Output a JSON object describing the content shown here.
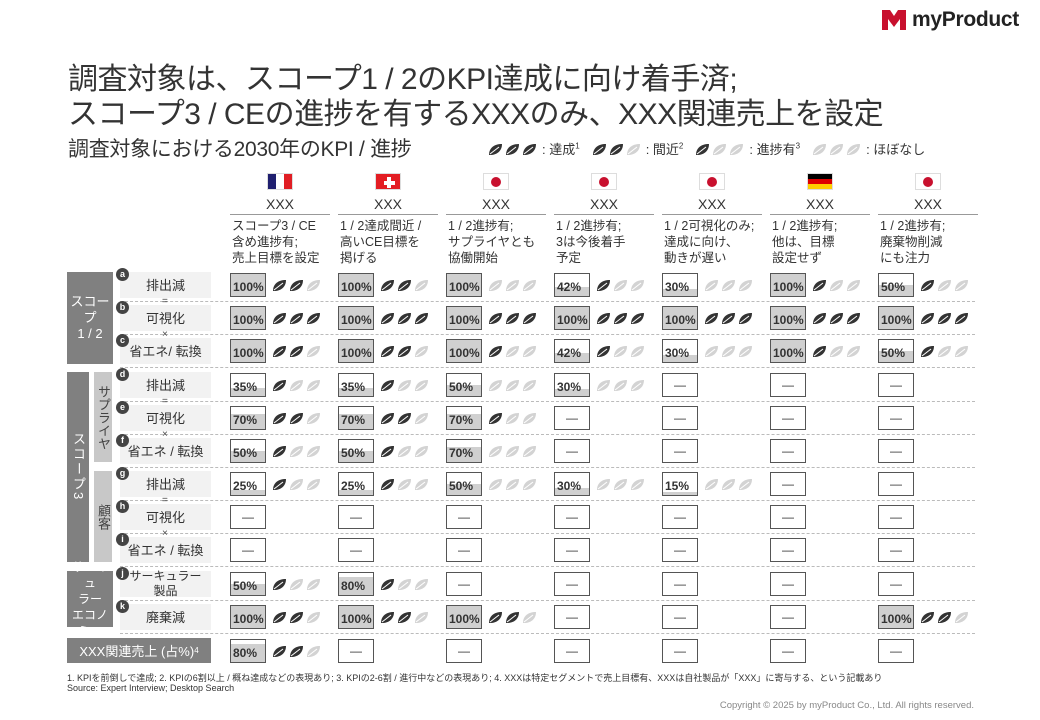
{
  "brand": {
    "name": "myProduct"
  },
  "title_lines": [
    "調査対象は、スコープ1 / 2のKPI達成に向け着手済;",
    "スコープ3 / CEの進捗を有するXXXのみ、XXX関連売上を設定"
  ],
  "subtitle": "調査対象における2030年のKPI / 進捗",
  "legend": [
    {
      "level": 3,
      "label": ": 達成",
      "sup": "1"
    },
    {
      "level": 2,
      "label": ": 間近",
      "sup": "2"
    },
    {
      "level": 1,
      "label": ": 進捗有",
      "sup": "3"
    },
    {
      "level": 0,
      "label": ": ほぼなし",
      "sup": ""
    }
  ],
  "colors": {
    "leaf_on": "#333333",
    "leaf_off": "#d3d3d3",
    "group_bg": "#808080",
    "fill": "#d0d0d0",
    "brand_red": "#c8102e"
  },
  "columns": [
    {
      "name": "XXX",
      "flag": "fr",
      "desc": [
        "スコープ3 / CE",
        "含め進捗有;",
        "売上目標を設定"
      ]
    },
    {
      "name": "XXX",
      "flag": "ch",
      "desc": [
        "1 / 2達成間近 /",
        "高いCE目標を",
        "掲げる"
      ]
    },
    {
      "name": "XXX",
      "flag": "jp",
      "desc": [
        "1 / 2進捗有;",
        "サプライヤとも",
        "協働開始"
      ]
    },
    {
      "name": "XXX",
      "flag": "jp",
      "desc": [
        "1 / 2進捗有;",
        "3は今後着手",
        "予定"
      ]
    },
    {
      "name": "XXX",
      "flag": "jp",
      "desc": [
        "1 / 2可視化のみ;",
        "達成に向け、",
        "動きが遅い"
      ]
    },
    {
      "name": "XXX",
      "flag": "de",
      "desc": [
        "1 / 2進捗有;",
        "他は、目標",
        "設定せず"
      ]
    },
    {
      "name": "XXX",
      "flag": "jp",
      "desc": [
        "1 / 2進捗有;",
        "廃棄物削減",
        "にも注力"
      ]
    }
  ],
  "groups": [
    {
      "label": "スコープ\n1 / 2"
    },
    {
      "label": "スコープ3"
    },
    {
      "label": "サーキュ\nラー\nエコノミー"
    }
  ],
  "subgroups": [
    {
      "label": "サプライヤ"
    },
    {
      "label": "顧客"
    }
  ],
  "ops": {
    "equals": "=",
    "times": "×"
  },
  "rows": [
    {
      "badge": "a",
      "label": "排出減",
      "cells": [
        [
          "100%",
          2
        ],
        [
          "100%",
          2
        ],
        [
          "100%",
          0
        ],
        [
          "42%",
          1
        ],
        [
          "30%",
          0
        ],
        [
          "100%",
          1
        ],
        [
          "50%",
          1
        ]
      ]
    },
    {
      "badge": "b",
      "label": "可視化",
      "cells": [
        [
          "100%",
          3
        ],
        [
          "100%",
          3
        ],
        [
          "100%",
          3
        ],
        [
          "100%",
          3
        ],
        [
          "100%",
          3
        ],
        [
          "100%",
          3
        ],
        [
          "100%",
          3
        ]
      ]
    },
    {
      "badge": "c",
      "label": "省エネ/ 転換",
      "cells": [
        [
          "100%",
          2
        ],
        [
          "100%",
          2
        ],
        [
          "100%",
          1
        ],
        [
          "42%",
          1
        ],
        [
          "30%",
          0
        ],
        [
          "100%",
          1
        ],
        [
          "50%",
          1
        ]
      ]
    },
    {
      "badge": "d",
      "label": "排出減",
      "cells": [
        [
          "35%",
          1
        ],
        [
          "35%",
          1
        ],
        [
          "50%",
          0
        ],
        [
          "30%",
          0
        ],
        [
          "—",
          null
        ],
        [
          "—",
          null
        ],
        [
          "—",
          null
        ]
      ]
    },
    {
      "badge": "e",
      "label": "可視化",
      "cells": [
        [
          "70%",
          2
        ],
        [
          "70%",
          2
        ],
        [
          "70%",
          1
        ],
        [
          "—",
          null
        ],
        [
          "—",
          null
        ],
        [
          "—",
          null
        ],
        [
          "—",
          null
        ]
      ]
    },
    {
      "badge": "f",
      "label": "省エネ / 転換",
      "cells": [
        [
          "50%",
          1
        ],
        [
          "50%",
          1
        ],
        [
          "70%",
          0
        ],
        [
          "—",
          null
        ],
        [
          "—",
          null
        ],
        [
          "—",
          null
        ],
        [
          "—",
          null
        ]
      ]
    },
    {
      "badge": "g",
      "label": "排出減",
      "cells": [
        [
          "25%",
          1
        ],
        [
          "25%",
          1
        ],
        [
          "50%",
          0
        ],
        [
          "30%",
          0
        ],
        [
          "15%",
          0
        ],
        [
          "—",
          null
        ],
        [
          "—",
          null
        ]
      ]
    },
    {
      "badge": "h",
      "label": "可視化",
      "cells": [
        [
          "—",
          null
        ],
        [
          "—",
          null
        ],
        [
          "—",
          null
        ],
        [
          "—",
          null
        ],
        [
          "—",
          null
        ],
        [
          "—",
          null
        ],
        [
          "—",
          null
        ]
      ]
    },
    {
      "badge": "i",
      "label": "省エネ / 転換",
      "cells": [
        [
          "—",
          null
        ],
        [
          "—",
          null
        ],
        [
          "—",
          null
        ],
        [
          "—",
          null
        ],
        [
          "—",
          null
        ],
        [
          "—",
          null
        ],
        [
          "—",
          null
        ]
      ]
    },
    {
      "badge": "j",
      "label": "サーキュラー\n製品",
      "cells": [
        [
          "50%",
          1
        ],
        [
          "80%",
          1
        ],
        [
          "—",
          null
        ],
        [
          "—",
          null
        ],
        [
          "—",
          null
        ],
        [
          "—",
          null
        ],
        [
          "—",
          null
        ]
      ]
    },
    {
      "badge": "k",
      "label": "廃棄減",
      "cells": [
        [
          "100%",
          2
        ],
        [
          "100%",
          2
        ],
        [
          "100%",
          2
        ],
        [
          "—",
          null
        ],
        [
          "—",
          null
        ],
        [
          "—",
          null
        ],
        [
          "100%",
          2
        ]
      ]
    }
  ],
  "sales": {
    "label": "XXX関連売上 (占%)",
    "sup": "4",
    "cells": [
      [
        "80%",
        2
      ],
      [
        "—",
        null
      ],
      [
        "—",
        null
      ],
      [
        "—",
        null
      ],
      [
        "—",
        null
      ],
      [
        "—",
        null
      ],
      [
        "—",
        null
      ]
    ]
  },
  "footnote_lines": [
    "1. KPIを前倒しで達成; 2. KPIの6割以上 / 概ね達成などの表現あり; 3. KPIの2-6割 / 進行中などの表現あり; 4. XXXは特定セグメントで売上目標有、XXXは自社製品が「XXX」に寄与する、という記載あり",
    "Source: Expert Interview; Desktop Search"
  ],
  "copyright": "Copyright © 2025 by myProduct Co., Ltd.  All rights reserved."
}
